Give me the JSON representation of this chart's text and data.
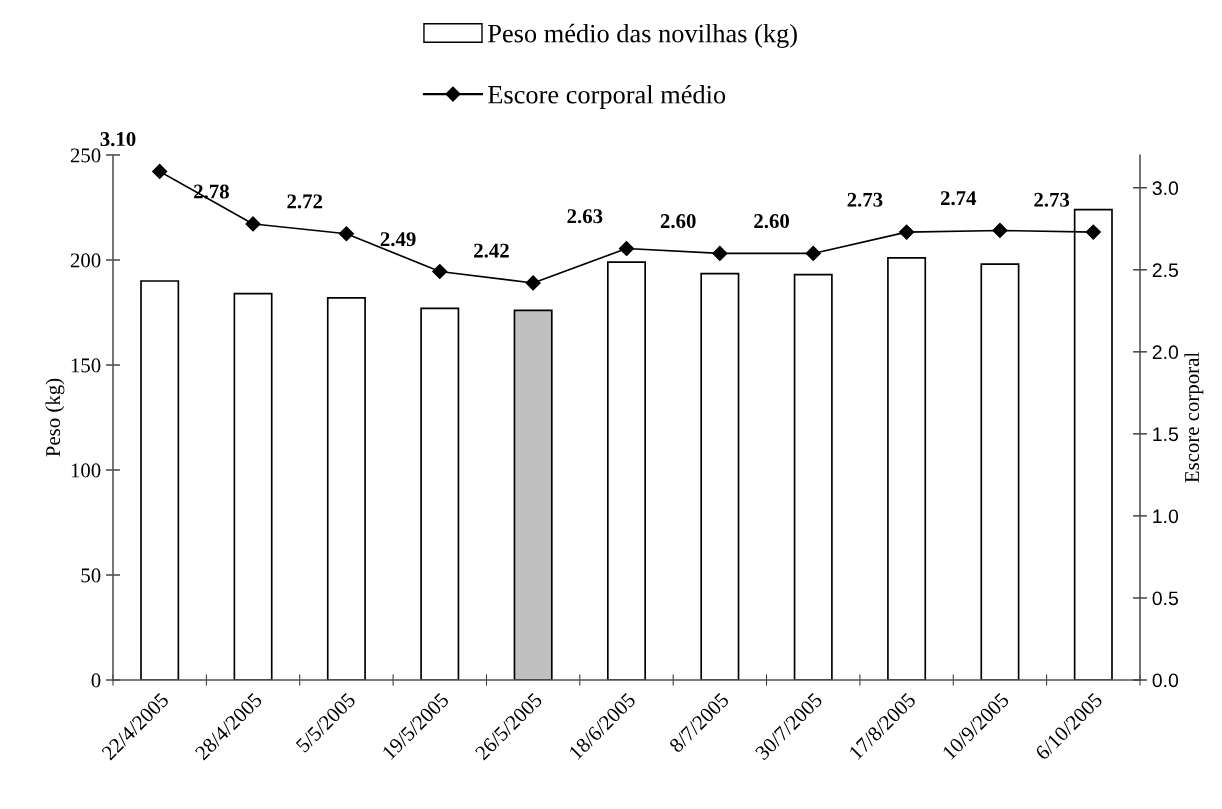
{
  "chart_data": {
    "type": "bar",
    "ylabel": "Peso (kg)",
    "y2label": "Escore corporal",
    "categories": [
      "22/4/2005",
      "28/4/2005",
      "5/5/2005",
      "19/5/2005",
      "26/5/2005",
      "18/6/2005",
      "8/7/2005",
      "30/7/2005",
      "17/8/2005",
      "10/9/2005",
      "6/10/2005"
    ],
    "series": [
      {
        "name": "Peso médio das novilhas (kg)",
        "color": "#ffffff",
        "colors": [
          "#ffffff",
          "#ffffff",
          "#ffffff",
          "#ffffff",
          "#c0c0c0",
          "#ffffff",
          "#ffffff",
          "#ffffff",
          "#ffffff",
          "#ffffff",
          "#ffffff"
        ],
        "values": [
          190,
          184,
          182,
          177,
          176,
          199,
          193.5,
          193,
          201,
          198,
          224
        ]
      },
      {
        "name": "Escore corporal médio",
        "type": "line",
        "axis": "y2",
        "color": "#000000",
        "marker": "diamond",
        "values": [
          3.1,
          2.78,
          2.72,
          2.49,
          2.42,
          2.63,
          2.6,
          2.6,
          2.73,
          2.74,
          2.73
        ],
        "value_labels": [
          "3.10",
          "2.78",
          "2.72",
          "2.49",
          "2.42",
          "2.63",
          "2.60",
          "2.60",
          "2.73",
          "2.74",
          "2.73"
        ]
      }
    ],
    "ylim": [
      0,
      250
    ],
    "yticks": [
      0,
      50,
      100,
      150,
      200,
      250
    ],
    "y2lim": [
      0,
      3.2
    ],
    "y2ticks": [
      {
        "value": 0,
        "label": "0.0"
      },
      {
        "value": 0.5,
        "label": "0.5"
      },
      {
        "value": 1,
        "label": "1.0"
      },
      {
        "value": 1.5,
        "label": "1.5"
      },
      {
        "value": 2,
        "label": "2.0"
      },
      {
        "value": 2.5,
        "label": "2.5"
      },
      {
        "value": 3,
        "label": "3.0"
      }
    ],
    "grid": false,
    "legend": "top"
  }
}
